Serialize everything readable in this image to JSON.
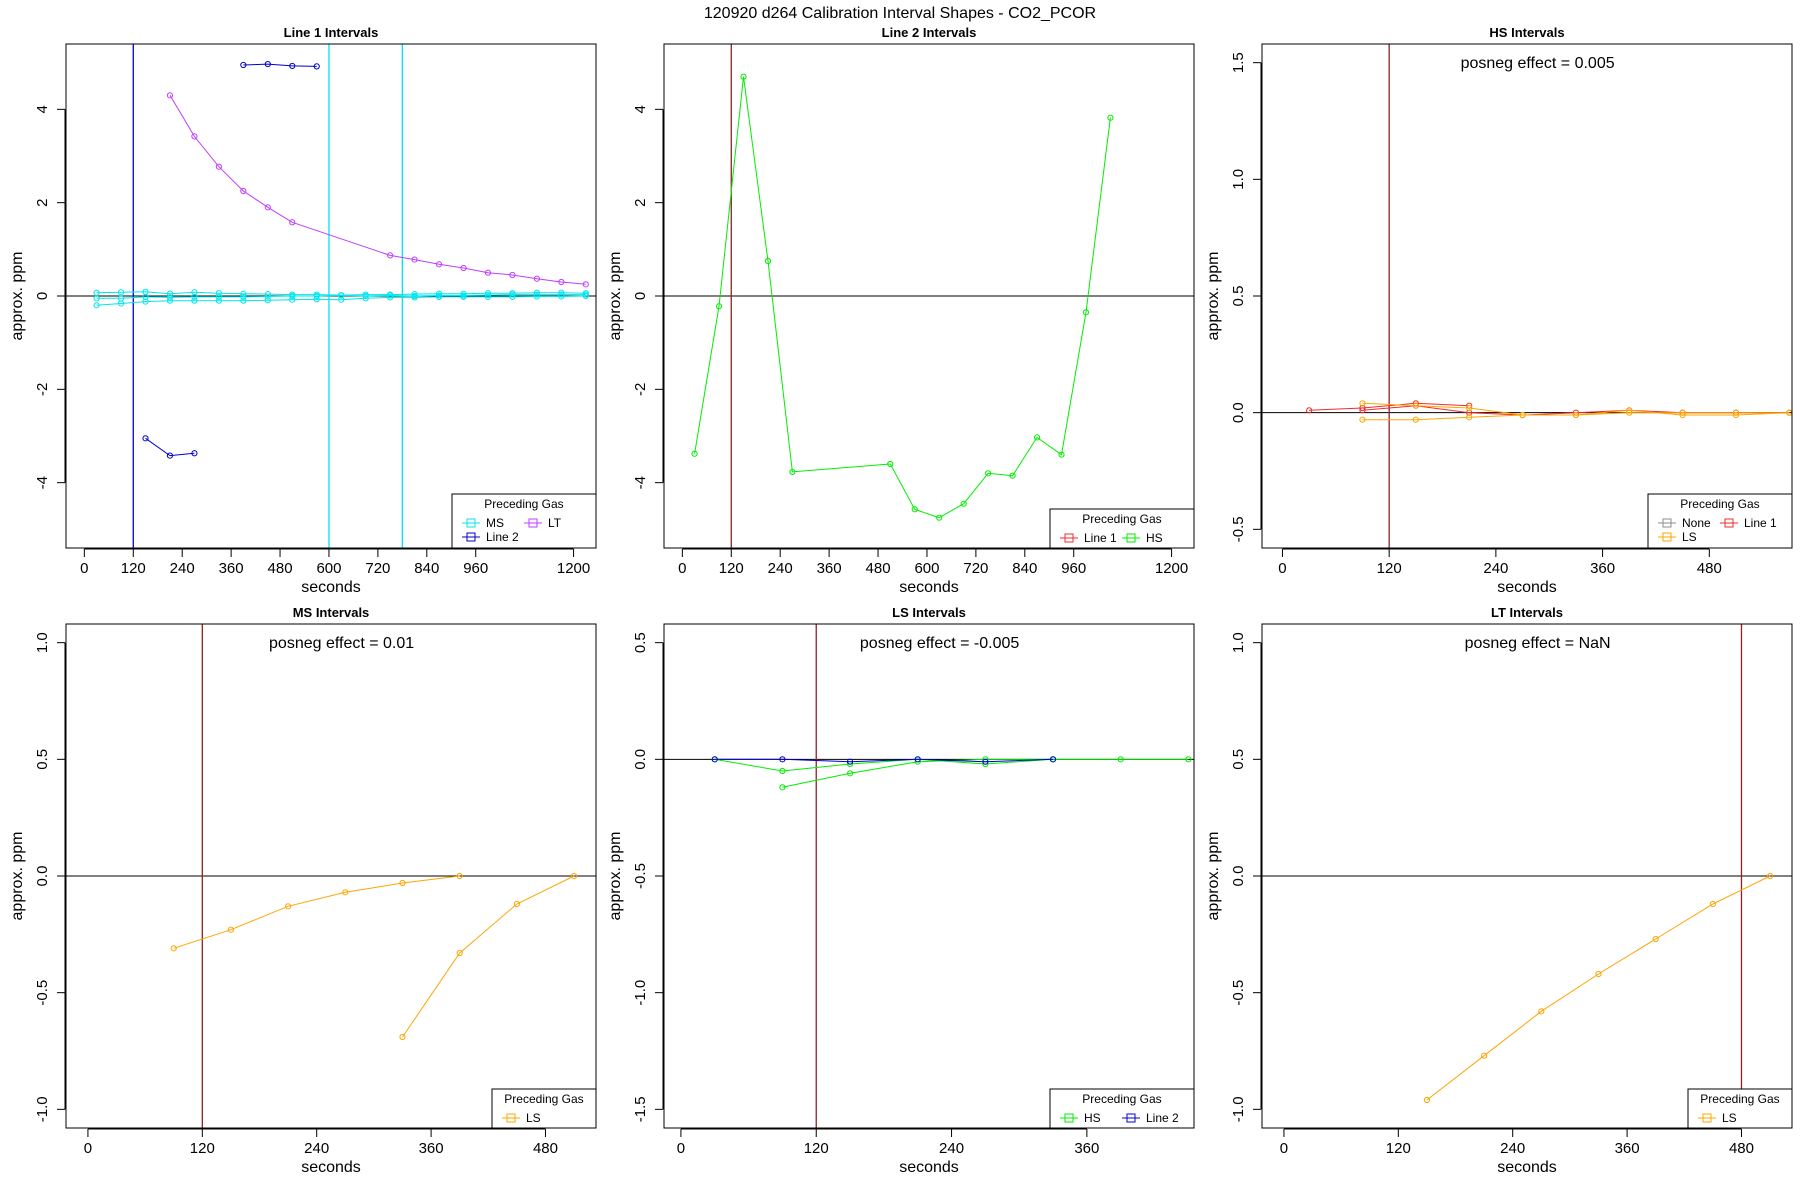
{
  "figure_title": "120920  d264   Calibration Interval Shapes - CO2_PCOR",
  "colors": {
    "MS": "#00e5ee",
    "Line 2": "#0000cd",
    "LT": "#bf3eff",
    "Line 1": "#ee2c2c",
    "HS": "#00ee00",
    "None": "#8c8c8c",
    "LS": "#ffa500",
    "interval_marker": "#8b2323",
    "zero_line": "#000000"
  },
  "chart_data": [
    {
      "type": "line",
      "title": "Line 1 Intervals",
      "xlabel": "seconds",
      "ylabel": "approx. ppm",
      "xlim": [
        -45,
        1255
      ],
      "ylim": [
        -5.4,
        5.4
      ],
      "xticks": [
        0,
        120,
        240,
        360,
        480,
        600,
        720,
        840,
        960,
        1200
      ],
      "yticks": [
        -4,
        -2,
        0,
        2,
        4
      ],
      "vlines": [
        {
          "x": 120,
          "color_key": "Line 2"
        },
        {
          "x": 600,
          "color_key": "MS"
        },
        {
          "x": 780,
          "color_key": "MS"
        }
      ],
      "annotation": "",
      "legend": {
        "title": "Preceding Gas",
        "position": "bottom-right",
        "columns": 2,
        "entries": [
          "MS",
          "LT",
          "Line 2"
        ]
      },
      "series": [
        {
          "name": "MS",
          "x": [
            30,
            90,
            150,
            210,
            270,
            330,
            390,
            450,
            510,
            570,
            630,
            690,
            750,
            810,
            870,
            930,
            990,
            1050,
            1110,
            1170,
            1230
          ],
          "y": [
            0.07,
            0.08,
            0.09,
            0.05,
            0.08,
            0.06,
            0.05,
            0.04,
            0.03,
            0.03,
            0.02,
            0.03,
            0.03,
            0.04,
            0.05,
            0.05,
            0.06,
            0.06,
            0.07,
            0.07,
            0.06
          ]
        },
        {
          "name": "MS",
          "x": [
            30,
            90,
            150,
            210,
            270,
            330,
            390,
            450,
            510,
            570,
            630,
            690,
            750,
            810,
            870,
            930,
            990,
            1050,
            1110,
            1170,
            1230
          ],
          "y": [
            -0.2,
            -0.16,
            -0.12,
            -0.1,
            -0.1,
            -0.1,
            -0.1,
            -0.09,
            -0.08,
            -0.07,
            -0.08,
            -0.05,
            -0.03,
            -0.03,
            -0.02,
            -0.02,
            -0.02,
            -0.02,
            -0.01,
            -0.01,
            0.0
          ]
        },
        {
          "name": "MS",
          "x": [
            30,
            90,
            150,
            210,
            270,
            330,
            390,
            450,
            510,
            570,
            630,
            690,
            750,
            810,
            870,
            930,
            990,
            1050,
            1110,
            1170,
            1230
          ],
          "y": [
            -0.05,
            -0.05,
            -0.02,
            -0.03,
            -0.02,
            -0.02,
            -0.02,
            -0.01,
            0.0,
            0.0,
            0.01,
            0.0,
            0.01,
            0.0,
            0.01,
            0.01,
            0.02,
            0.03,
            0.03,
            0.03,
            0.03
          ]
        },
        {
          "name": "Line 2",
          "x": [
            150,
            210,
            270
          ],
          "y": [
            -3.05,
            -3.42,
            -3.37
          ]
        },
        {
          "name": "Line 2",
          "x": [
            390,
            450,
            510,
            570
          ],
          "y": [
            4.95,
            4.97,
            4.93,
            4.92
          ]
        },
        {
          "name": "LT",
          "x": [
            210,
            270,
            330,
            390,
            450,
            510,
            750,
            810,
            870,
            930,
            990,
            1050,
            1110,
            1170,
            1230
          ],
          "y": [
            4.3,
            3.42,
            2.77,
            2.25,
            1.9,
            1.58,
            0.87,
            0.78,
            0.68,
            0.6,
            0.5,
            0.45,
            0.37,
            0.3,
            0.25
          ]
        }
      ]
    },
    {
      "type": "line",
      "title": "Line 2 Intervals",
      "xlabel": "seconds",
      "ylabel": "approx. ppm",
      "xlim": [
        -45,
        1255
      ],
      "ylim": [
        -5.4,
        5.4
      ],
      "xticks": [
        0,
        120,
        240,
        360,
        480,
        600,
        720,
        840,
        960,
        1200
      ],
      "yticks": [
        -4,
        -2,
        0,
        2,
        4
      ],
      "vlines": [
        {
          "x": 120,
          "color_key": "interval_marker"
        }
      ],
      "annotation": "",
      "legend": {
        "title": "Preceding Gas",
        "position": "bottom-right",
        "columns": 2,
        "entries": [
          "Line 1",
          "HS"
        ]
      },
      "series": [
        {
          "name": "HS",
          "x": [
            30,
            90,
            150,
            210,
            270,
            510,
            570,
            630,
            690,
            750,
            810,
            870,
            930,
            990,
            1050
          ],
          "y": [
            -3.38,
            -0.22,
            4.7,
            0.75,
            -3.77,
            -3.6,
            -4.57,
            -4.75,
            -4.45,
            -3.8,
            -3.85,
            -3.03,
            -3.4,
            -0.35,
            3.82
          ]
        }
      ]
    },
    {
      "type": "line",
      "title": "HS Intervals",
      "xlabel": "seconds",
      "ylabel": "approx. ppm",
      "xlim": [
        -23,
        573
      ],
      "ylim": [
        -0.58,
        1.58
      ],
      "xticks": [
        0,
        120,
        240,
        360,
        480
      ],
      "yticks": [
        -0.5,
        0.0,
        0.5,
        1.0,
        1.5
      ],
      "vlines": [
        {
          "x": 120,
          "color_key": "interval_marker"
        }
      ],
      "annotation": "posneg effect = 0.005",
      "legend": {
        "title": "Preceding Gas",
        "position": "bottom-right",
        "columns": 2,
        "entries": [
          "None",
          "Line 1",
          "LS"
        ]
      },
      "series": [
        {
          "name": "Line 1",
          "x": [
            30,
            90,
            150,
            210
          ],
          "y": [
            0.01,
            0.02,
            0.04,
            0.03
          ]
        },
        {
          "name": "Line 1",
          "x": [
            90,
            150,
            210,
            270,
            330,
            390,
            450,
            510,
            570
          ],
          "y": [
            0.01,
            0.03,
            0.0,
            -0.01,
            0.0,
            0.01,
            0.0,
            0.0,
            0.0
          ]
        },
        {
          "name": "LS",
          "x": [
            90,
            150,
            210,
            270,
            330,
            390,
            450,
            510,
            570
          ],
          "y": [
            0.04,
            0.03,
            0.02,
            -0.01,
            -0.01,
            0.0,
            0.0,
            0.0,
            0.0
          ]
        },
        {
          "name": "LS",
          "x": [
            90,
            150,
            210,
            270,
            330,
            390,
            450,
            510,
            570
          ],
          "y": [
            -0.03,
            -0.03,
            -0.02,
            -0.01,
            -0.01,
            0.01,
            -0.01,
            -0.01,
            0.0
          ]
        }
      ]
    },
    {
      "type": "line",
      "title": "MS Intervals",
      "xlabel": "seconds",
      "ylabel": "approx. ppm",
      "xlim": [
        -23,
        533
      ],
      "ylim": [
        -1.08,
        1.08
      ],
      "xticks": [
        0,
        120,
        240,
        360,
        480
      ],
      "yticks": [
        -1.0,
        -0.5,
        0.0,
        0.5,
        1.0
      ],
      "vlines": [
        {
          "x": 120,
          "color_key": "interval_marker"
        }
      ],
      "annotation": "posneg effect = 0.01",
      "legend": {
        "title": "Preceding Gas",
        "position": "bottom-right",
        "columns": 1,
        "entries": [
          "LS"
        ]
      },
      "series": [
        {
          "name": "LS",
          "x": [
            90,
            150,
            210,
            270,
            330,
            390
          ],
          "y": [
            -0.31,
            -0.23,
            -0.13,
            -0.07,
            -0.03,
            0.0
          ]
        },
        {
          "name": "LS",
          "x": [
            330,
            390,
            450,
            510
          ],
          "y": [
            -0.69,
            -0.33,
            -0.12,
            0.0
          ]
        }
      ]
    },
    {
      "type": "line",
      "title": "LS Intervals",
      "xlabel": "seconds",
      "ylabel": "approx. ppm",
      "xlim": [
        -15,
        455
      ],
      "ylim": [
        -1.58,
        0.58
      ],
      "xticks": [
        0,
        120,
        240,
        360
      ],
      "yticks": [
        -1.5,
        -1.0,
        -0.5,
        0.0,
        0.5
      ],
      "vlines": [
        {
          "x": 120,
          "color_key": "interval_marker"
        }
      ],
      "annotation": "posneg effect = -0.005",
      "legend": {
        "title": "Preceding Gas",
        "position": "bottom-right",
        "columns": 2,
        "entries": [
          "HS",
          "Line 2"
        ]
      },
      "series": [
        {
          "name": "HS",
          "x": [
            90,
            150,
            210,
            270,
            330,
            390,
            450
          ],
          "y": [
            -0.12,
            -0.06,
            -0.01,
            0.0,
            0.0,
            0.0,
            0.0
          ]
        },
        {
          "name": "HS",
          "x": [
            30,
            90,
            150,
            210,
            270,
            330
          ],
          "y": [
            0.0,
            -0.05,
            -0.02,
            0.0,
            -0.02,
            0.0
          ]
        },
        {
          "name": "Line 2",
          "x": [
            30,
            90,
            150,
            210,
            270,
            330
          ],
          "y": [
            0.0,
            0.0,
            -0.01,
            0.0,
            -0.01,
            0.0
          ]
        }
      ]
    },
    {
      "type": "line",
      "title": "LT Intervals",
      "xlabel": "seconds",
      "ylabel": "approx. ppm",
      "xlim": [
        -23,
        533
      ],
      "ylim": [
        -1.08,
        1.08
      ],
      "xticks": [
        0,
        120,
        240,
        360,
        480
      ],
      "yticks": [
        -1.0,
        -0.5,
        0.0,
        0.5,
        1.0
      ],
      "vlines": [
        {
          "x": 480,
          "color_key": "interval_marker"
        }
      ],
      "annotation": "posneg effect = NaN",
      "legend": {
        "title": "Preceding Gas",
        "position": "bottom-right",
        "columns": 1,
        "entries": [
          "LS"
        ]
      },
      "series": [
        {
          "name": "LS",
          "x": [
            150,
            210,
            270,
            330,
            390,
            450,
            510
          ],
          "y": [
            -0.96,
            -0.77,
            -0.58,
            -0.42,
            -0.27,
            -0.12,
            0.0
          ]
        }
      ]
    }
  ]
}
